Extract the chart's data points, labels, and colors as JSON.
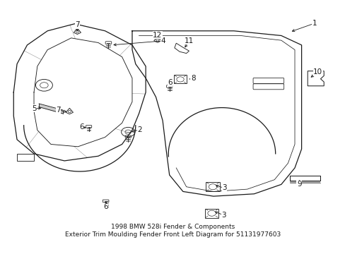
{
  "bg_color": "#ffffff",
  "line_color": "#1a1a1a",
  "title": "1998 BMW 528i Fender & Components\nExterior Trim Moulding Fender Front Left Diagram for 51131977603",
  "title_fontsize": 6.5,
  "fig_width": 4.89,
  "fig_height": 3.6,
  "dpi": 100
}
